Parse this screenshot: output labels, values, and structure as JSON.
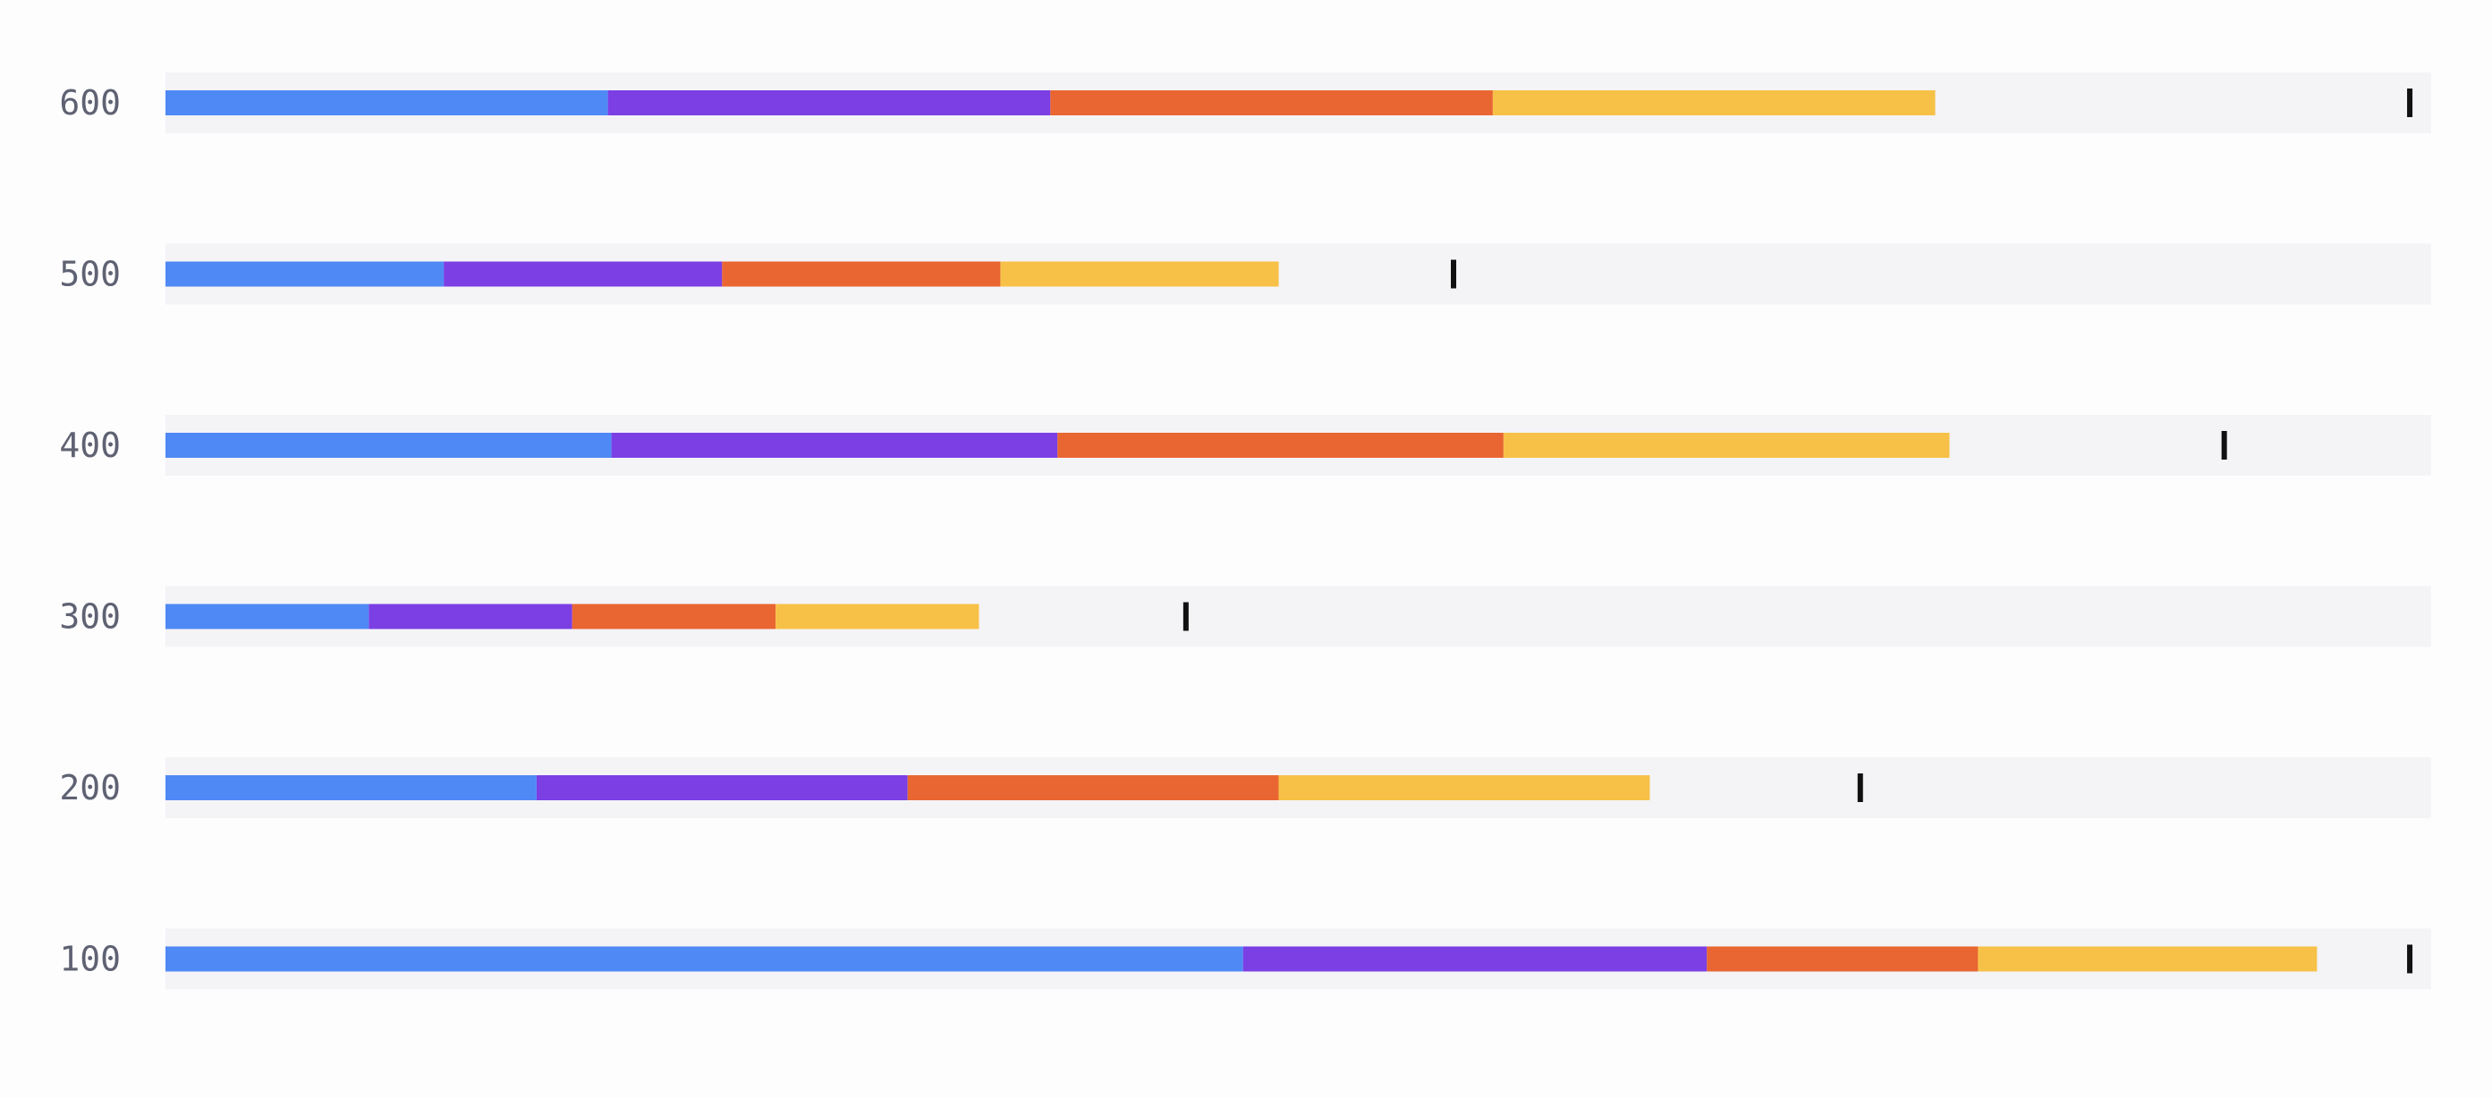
{
  "chart_data": {
    "type": "bar",
    "orientation": "horizontal",
    "stacked": true,
    "categories": [
      "600",
      "500",
      "400",
      "300",
      "200",
      "100"
    ],
    "series": [
      {
        "color": "#4f89f5",
        "values": [
          124,
          78,
          125,
          57,
          104,
          302
        ]
      },
      {
        "color": "#7b3fe4",
        "values": [
          124,
          78,
          125,
          57,
          104,
          130
        ]
      },
      {
        "color": "#e96632",
        "values": [
          124,
          78,
          125,
          57,
          104,
          76
        ]
      },
      {
        "color": "#f7c148",
        "values": [
          124,
          78,
          125,
          57,
          104,
          95
        ]
      }
    ],
    "markers": [
      629,
      361,
      577,
      286,
      475,
      629
    ],
    "xlim": [
      0,
      635
    ],
    "background_track": true,
    "grid": false,
    "legend": "none",
    "marker_color": "#111111",
    "track_color": "#f4f4f7"
  }
}
